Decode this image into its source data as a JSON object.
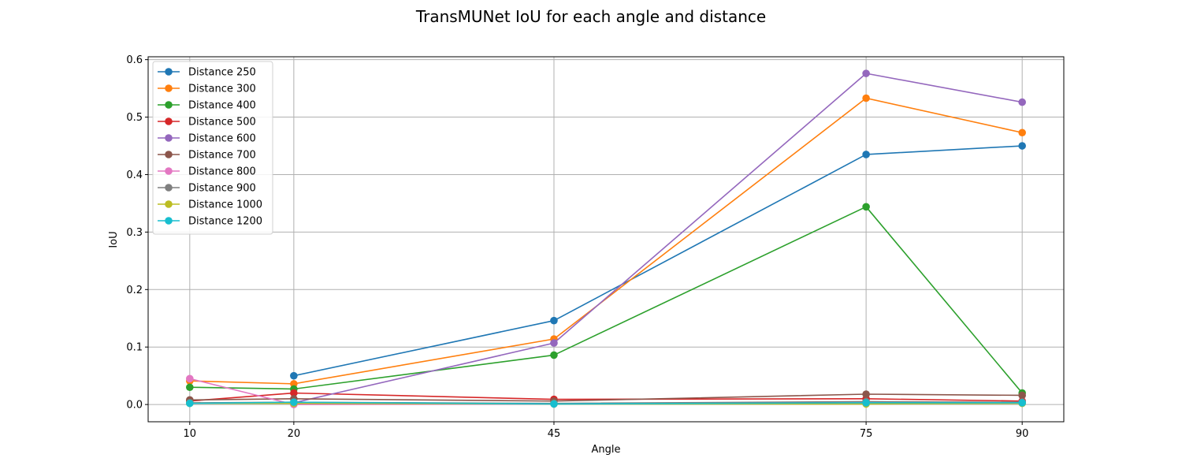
{
  "chart_data": {
    "type": "line",
    "title": "TransMUNet IoU for each angle and distance",
    "xlabel": "Angle",
    "ylabel": "IoU",
    "x": [
      10,
      20,
      45,
      75,
      90
    ],
    "xticks": [
      "10",
      "20",
      "45",
      "75",
      "90"
    ],
    "xlim": [
      6,
      94
    ],
    "ylim": [
      -0.03,
      0.605
    ],
    "yticks": [
      "0.0",
      "0.1",
      "0.2",
      "0.3",
      "0.4",
      "0.5",
      "0.6"
    ],
    "grid": true,
    "legend_position": "top-left",
    "series": [
      {
        "name": "Distance 250",
        "color": "#1f77b4",
        "points": [
          [
            20,
            0.05
          ],
          [
            45,
            0.146
          ],
          [
            75,
            0.435
          ],
          [
            90,
            0.45
          ]
        ]
      },
      {
        "name": "Distance 300",
        "color": "#ff7f0e",
        "points": [
          [
            10,
            0.041
          ],
          [
            20,
            0.036
          ],
          [
            45,
            0.114
          ],
          [
            75,
            0.533
          ],
          [
            90,
            0.473
          ]
        ]
      },
      {
        "name": "Distance 400",
        "color": "#2ca02c",
        "points": [
          [
            10,
            0.03
          ],
          [
            20,
            0.027
          ],
          [
            45,
            0.086
          ],
          [
            75,
            0.344
          ],
          [
            90,
            0.02
          ]
        ]
      },
      {
        "name": "Distance 500",
        "color": "#d62728",
        "points": [
          [
            10,
            0.006
          ],
          [
            20,
            0.02
          ],
          [
            45,
            0.009
          ],
          [
            75,
            0.01
          ],
          [
            90,
            0.006
          ]
        ]
      },
      {
        "name": "Distance 600",
        "color": "#9467bd",
        "points": [
          [
            20,
            0.003
          ],
          [
            45,
            0.107
          ],
          [
            75,
            0.576
          ],
          [
            90,
            0.526
          ]
        ]
      },
      {
        "name": "Distance 700",
        "color": "#8c564b",
        "points": [
          [
            10,
            0.008
          ],
          [
            20,
            0.01
          ],
          [
            45,
            0.006
          ],
          [
            75,
            0.018
          ],
          [
            90,
            0.016
          ]
        ]
      },
      {
        "name": "Distance 800",
        "color": "#e377c2",
        "points": [
          [
            10,
            0.045
          ],
          [
            20,
            0.0
          ],
          [
            45,
            0.001
          ],
          [
            75,
            0.003
          ],
          [
            90,
            0.004
          ]
        ]
      },
      {
        "name": "Distance 900",
        "color": "#7f7f7f",
        "points": [
          [
            10,
            0.003
          ],
          [
            20,
            0.004
          ],
          [
            45,
            0.002
          ],
          [
            75,
            0.005
          ],
          [
            90,
            0.004
          ]
        ]
      },
      {
        "name": "Distance 1000",
        "color": "#bcbd22",
        "points": [
          [
            10,
            0.002
          ],
          [
            20,
            0.002
          ],
          [
            45,
            0.001
          ],
          [
            75,
            0.001
          ],
          [
            90,
            0.002
          ]
        ]
      },
      {
        "name": "Distance 1200",
        "color": "#17becf",
        "points": [
          [
            10,
            0.002
          ],
          [
            20,
            0.004
          ],
          [
            45,
            0.001
          ],
          [
            75,
            0.003
          ],
          [
            90,
            0.003
          ]
        ]
      }
    ]
  }
}
